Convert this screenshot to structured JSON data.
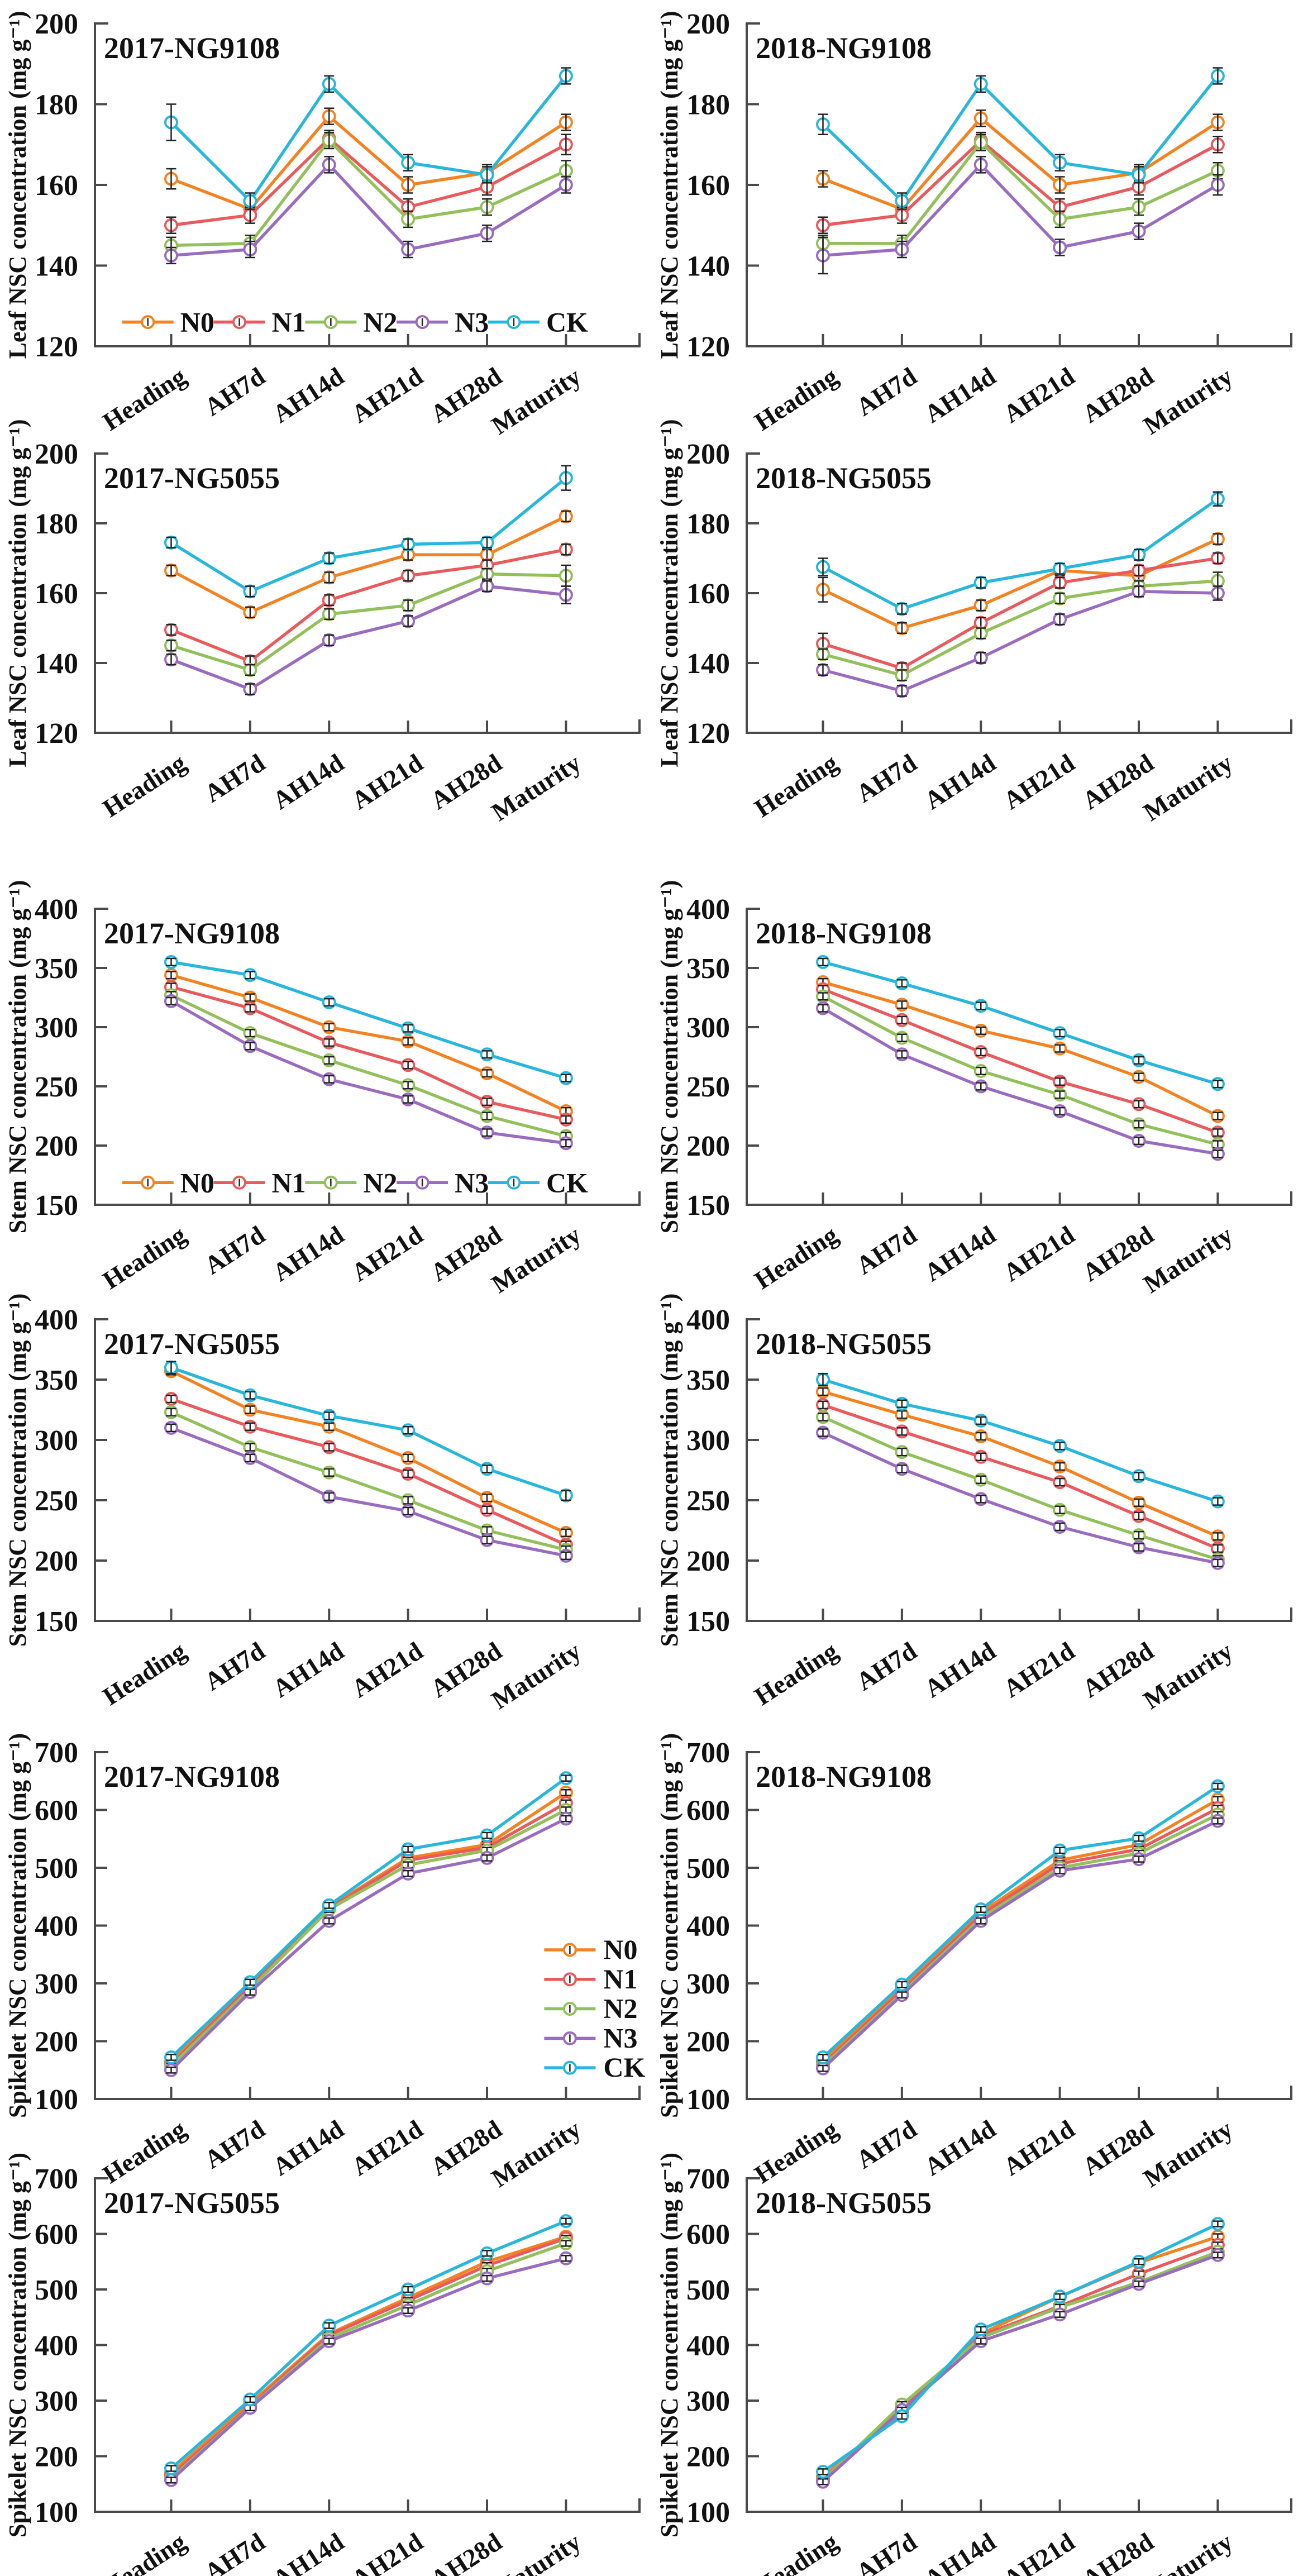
{
  "chart_data": {
    "type": "line",
    "categories": [
      "Heading",
      "AH7d",
      "AH14d",
      "AH21d",
      "AH28d",
      "Maturity"
    ],
    "series_names": [
      "N0",
      "N1",
      "N2",
      "N3",
      "CK"
    ],
    "colors": {
      "N0": "#F58220",
      "N1": "#EA5A5C",
      "N2": "#92C05A",
      "N3": "#9A6CC0",
      "CK": "#27B7DC"
    },
    "axis_color": "#4a4a4a",
    "error_bar_color": "#222222",
    "legend_position_note": "horizontal legend inside bottom of panels 1 and 5; vertical legend at right of panel 9",
    "panels": [
      {
        "id": "leaf-2017-NG9108",
        "title": "2017-NG9108",
        "ylabel": "Leaf NSC concentration (mg g⁻¹)",
        "ylim": [
          120,
          200
        ],
        "yticks": [
          120,
          140,
          160,
          180,
          200
        ],
        "err": 2,
        "legend": "h",
        "err_pts": [
          [
            "CK",
            0,
            4.5
          ],
          [
            "N0",
            0,
            2.5
          ],
          [
            "N1",
            5,
            2.5
          ],
          [
            "N2",
            5,
            2.5
          ]
        ],
        "series": {
          "N0": [
            161.5,
            154,
            177,
            160,
            163,
            175.5
          ],
          "N1": [
            150,
            152.5,
            171.5,
            154.5,
            159.5,
            170
          ],
          "N2": [
            145,
            145.5,
            171,
            151.5,
            154.5,
            163.5
          ],
          "N3": [
            142.5,
            144,
            165,
            144,
            148,
            160
          ],
          "CK": [
            175.5,
            156,
            185,
            165.5,
            162.5,
            187
          ]
        }
      },
      {
        "id": "leaf-2018-NG9108",
        "title": "2018-NG9108",
        "ylabel": "Leaf NSC concentration (mg g⁻¹)",
        "ylim": [
          120,
          200
        ],
        "yticks": [
          120,
          140,
          160,
          180,
          200
        ],
        "err": 2,
        "legend": "none",
        "err_pts": [
          [
            "N3",
            0,
            4.5
          ],
          [
            "CK",
            0,
            2.5
          ],
          [
            "N3",
            5,
            2.5
          ],
          [
            "N1",
            5,
            2
          ]
        ],
        "series": {
          "N0": [
            161.5,
            154,
            176.5,
            160,
            163,
            175.5
          ],
          "N1": [
            150,
            152.5,
            171,
            154.5,
            159.5,
            170
          ],
          "N2": [
            145.5,
            145.5,
            170.5,
            151.5,
            154.5,
            163.5
          ],
          "N3": [
            142.5,
            144,
            165,
            144.5,
            148.5,
            160
          ],
          "CK": [
            175,
            156,
            185,
            165.5,
            162.5,
            187
          ]
        }
      },
      {
        "id": "leaf-2017-NG5055",
        "title": "2017-NG5055",
        "ylabel": "Leaf NSC concentration (mg g⁻¹)",
        "ylim": [
          120,
          200
        ],
        "yticks": [
          120,
          140,
          160,
          180,
          200
        ],
        "err": 1.5,
        "legend": "none",
        "err_pts": [
          [
            "CK",
            5,
            3.5
          ],
          [
            "N2",
            5,
            3
          ],
          [
            "N3",
            5,
            2.5
          ],
          [
            "N0",
            0,
            1.5
          ]
        ],
        "series": {
          "N0": [
            166.5,
            154.5,
            164.5,
            171,
            171,
            182
          ],
          "N1": [
            149.5,
            140.5,
            158,
            165,
            168,
            172.5
          ],
          "N2": [
            145,
            138,
            154,
            156.5,
            165.5,
            165
          ],
          "N3": [
            141,
            132.5,
            146.5,
            152,
            162,
            159.5
          ],
          "CK": [
            174.5,
            160.5,
            170,
            174,
            174.5,
            193
          ]
        }
      },
      {
        "id": "leaf-2018-NG5055",
        "title": "2018-NG5055",
        "ylabel": "Leaf NSC concentration (mg g⁻¹)",
        "ylim": [
          120,
          200
        ],
        "yticks": [
          120,
          140,
          160,
          180,
          200
        ],
        "err": 1.5,
        "legend": "none",
        "err_pts": [
          [
            "N0",
            0,
            3.5
          ],
          [
            "N1",
            0,
            3
          ],
          [
            "CK",
            0,
            2.5
          ],
          [
            "N2",
            5,
            2.5
          ],
          [
            "N3",
            5,
            2
          ],
          [
            "CK",
            5,
            2
          ]
        ],
        "series": {
          "N0": [
            161,
            150,
            156.5,
            166.5,
            165,
            175.5
          ],
          "N1": [
            145.5,
            138.5,
            151.5,
            163,
            166.5,
            170
          ],
          "N2": [
            142.5,
            136.5,
            148.5,
            158.5,
            162,
            163.5
          ],
          "N3": [
            138,
            132,
            141.5,
            152.5,
            160.5,
            160
          ],
          "CK": [
            167.5,
            155.5,
            163,
            167,
            171,
            187
          ]
        }
      },
      {
        "id": "stem-2017-NG9108",
        "title": "2017-NG9108",
        "ylabel": "Stem NSC concentration (mg g⁻¹)",
        "ylim": [
          150,
          400
        ],
        "yticks": [
          150,
          200,
          250,
          300,
          350,
          400
        ],
        "err": 3,
        "legend": "h",
        "err_pts": [],
        "series": {
          "N0": [
            344,
            325,
            300,
            288,
            261,
            229
          ],
          "N1": [
            334,
            316,
            287,
            268,
            237,
            222
          ],
          "N2": [
            327,
            295,
            272,
            251,
            225,
            208
          ],
          "N3": [
            322,
            284,
            256,
            239,
            211,
            202
          ],
          "CK": [
            355,
            344,
            321,
            299,
            277,
            257
          ]
        }
      },
      {
        "id": "stem-2018-NG9108",
        "title": "2018-NG9108",
        "ylabel": "Stem NSC concentration (mg g⁻¹)",
        "ylim": [
          150,
          400
        ],
        "yticks": [
          150,
          200,
          250,
          300,
          350,
          400
        ],
        "err": 3,
        "legend": "none",
        "err_pts": [],
        "series": {
          "N0": [
            338,
            319,
            297,
            282,
            258,
            225
          ],
          "N1": [
            332,
            306,
            279,
            254,
            235,
            211
          ],
          "N2": [
            326,
            291,
            263,
            243,
            218,
            201
          ],
          "N3": [
            316,
            277,
            250,
            229,
            204,
            193
          ],
          "CK": [
            355,
            337,
            318,
            295,
            272,
            252
          ]
        }
      },
      {
        "id": "stem-2017-NG5055",
        "title": "2017-NG5055",
        "ylabel": "Stem NSC concentration (mg g⁻¹)",
        "ylim": [
          150,
          400
        ],
        "yticks": [
          150,
          200,
          250,
          300,
          350,
          400
        ],
        "err": 3,
        "legend": "none",
        "err_pts": [
          [
            "CK",
            0,
            5
          ],
          [
            "CK",
            5,
            4
          ]
        ],
        "series": {
          "N0": [
            357,
            325,
            311,
            285,
            252,
            223
          ],
          "N1": [
            334,
            311,
            294,
            272,
            242,
            213
          ],
          "N2": [
            323,
            294,
            273,
            250,
            225,
            209
          ],
          "N3": [
            310,
            285,
            253,
            241,
            217,
            204
          ],
          "CK": [
            360,
            337,
            320,
            308,
            276,
            254
          ]
        }
      },
      {
        "id": "stem-2018-NG5055",
        "title": "2018-NG5055",
        "ylabel": "Stem NSC concentration (mg g⁻¹)",
        "ylim": [
          150,
          400
        ],
        "yticks": [
          150,
          200,
          250,
          300,
          350,
          400
        ],
        "err": 3,
        "legend": "none",
        "err_pts": [
          [
            "CK",
            0,
            5
          ]
        ],
        "series": {
          "N0": [
            340,
            321,
            303,
            278,
            248,
            220
          ],
          "N1": [
            329,
            307,
            286,
            265,
            237,
            210
          ],
          "N2": [
            319,
            290,
            267,
            242,
            221,
            201
          ],
          "N3": [
            306,
            276,
            251,
            228,
            211,
            198
          ],
          "CK": [
            350,
            330,
            316,
            295,
            270,
            249
          ]
        }
      },
      {
        "id": "spikelet-2017-NG9108",
        "title": "2017-NG9108",
        "ylabel": "Spikelet NSC concentration (mg g⁻¹)",
        "ylim": [
          100,
          700
        ],
        "yticks": [
          100,
          200,
          300,
          400,
          500,
          600,
          700
        ],
        "err": 5,
        "legend": "v",
        "err_pts": [],
        "series": {
          "N0": [
            165,
            298,
            432,
            517,
            540,
            630
          ],
          "N1": [
            160,
            295,
            430,
            513,
            535,
            612
          ],
          "N2": [
            157,
            290,
            428,
            505,
            530,
            600
          ],
          "N3": [
            150,
            285,
            408,
            490,
            517,
            585
          ],
          "CK": [
            172,
            302,
            435,
            532,
            556,
            655
          ]
        }
      },
      {
        "id": "spikelet-2018-NG9108",
        "title": "2018-NG9108",
        "ylabel": "Spikelet NSC concentration (mg g⁻¹)",
        "ylim": [
          100,
          700
        ],
        "yticks": [
          100,
          200,
          300,
          400,
          500,
          600,
          700
        ],
        "err": 5,
        "legend": "none",
        "err_pts": [],
        "series": {
          "N0": [
            166,
            293,
            423,
            513,
            540,
            618
          ],
          "N1": [
            160,
            288,
            418,
            507,
            532,
            603
          ],
          "N2": [
            157,
            283,
            413,
            500,
            525,
            592
          ],
          "N3": [
            153,
            280,
            408,
            495,
            515,
            581
          ],
          "CK": [
            172,
            298,
            428,
            530,
            551,
            641
          ]
        }
      },
      {
        "id": "spikelet-2017-NG5055",
        "title": "2017-NG5055",
        "ylabel": "Spikelet NSC concentration (mg g⁻¹)",
        "ylim": [
          100,
          700
        ],
        "yticks": [
          100,
          200,
          300,
          400,
          500,
          600,
          700
        ],
        "err": 5,
        "legend": "none",
        "err_pts": [],
        "series": {
          "N0": [
            170,
            295,
            420,
            485,
            550,
            595
          ],
          "N1": [
            165,
            290,
            418,
            480,
            543,
            592
          ],
          "N2": [
            160,
            288,
            412,
            472,
            533,
            583
          ],
          "N3": [
            157,
            287,
            407,
            462,
            520,
            556
          ],
          "CK": [
            178,
            302,
            435,
            500,
            565,
            623
          ]
        }
      },
      {
        "id": "spikelet-2018-NG5055",
        "title": "2018-NG5055",
        "ylabel": "Spikelet NSC concentration (mg g⁻¹)",
        "ylim": [
          100,
          700
        ],
        "yticks": [
          100,
          200,
          300,
          400,
          500,
          600,
          700
        ],
        "err": 5,
        "legend": "none",
        "err_pts": [],
        "series": {
          "N0": [
            163,
            280,
            420,
            487,
            548,
            595
          ],
          "N1": [
            158,
            285,
            417,
            470,
            528,
            580
          ],
          "N2": [
            156,
            293,
            413,
            468,
            513,
            568
          ],
          "N3": [
            154,
            283,
            407,
            455,
            510,
            562
          ],
          "CK": [
            172,
            272,
            428,
            487,
            550,
            618
          ]
        }
      }
    ]
  }
}
